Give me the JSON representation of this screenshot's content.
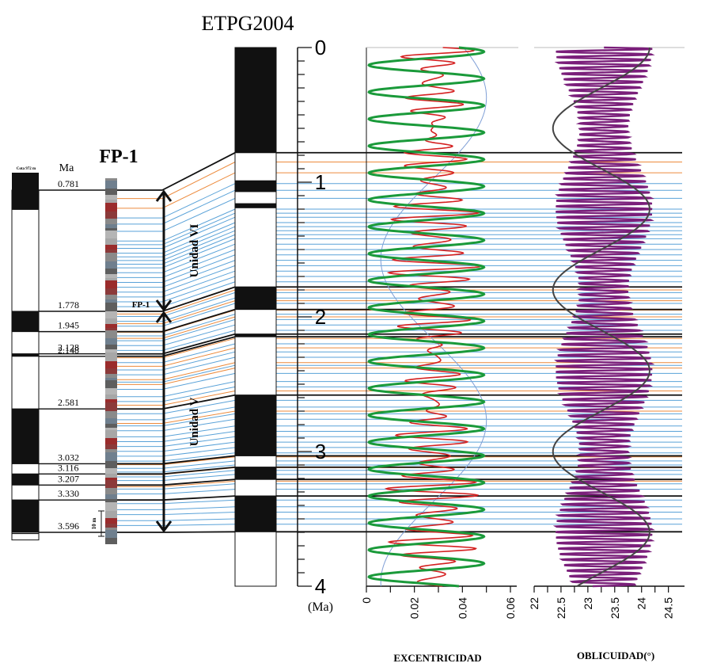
{
  "chart_data": {
    "type": "line",
    "title": "ETPG2004",
    "section_title": "FP-1",
    "fp1_column_label": "Cota 972 m",
    "fp1_age_header": "Ma",
    "fp1_inline_label": "FP-1",
    "scale_bar_label": "10 m",
    "age_axis": {
      "unit_label": "(Ma)",
      "ticks": [
        "0",
        "1",
        "2",
        "3",
        "4"
      ],
      "range": [
        0,
        4
      ]
    },
    "boundary_ages": [
      0.781,
      1.778,
      1.945,
      2.128,
      2.148,
      2.581,
      3.032,
      3.116,
      3.207,
      3.33,
      3.596
    ],
    "boundary_age_labels": [
      "0.781",
      "1.778",
      "1.945",
      "2.128",
      "2.148",
      "2.581",
      "3.032",
      "3.116",
      "3.207",
      "3.330",
      "3.596"
    ],
    "units": [
      {
        "label": "Unidad VI",
        "from": 0.781,
        "to": 1.778
      },
      {
        "label": "Unidad V",
        "from": 1.778,
        "to": 3.596
      }
    ],
    "polarity_etpg2004": [
      {
        "from": 0.0,
        "to": 0.781,
        "polarity": "normal"
      },
      {
        "from": 0.781,
        "to": 0.99,
        "polarity": "reversed"
      },
      {
        "from": 0.99,
        "to": 1.07,
        "polarity": "normal"
      },
      {
        "from": 1.07,
        "to": 1.16,
        "polarity": "reversed"
      },
      {
        "from": 1.16,
        "to": 1.19,
        "polarity": "normal"
      },
      {
        "from": 1.19,
        "to": 1.778,
        "polarity": "reversed"
      },
      {
        "from": 1.778,
        "to": 1.945,
        "polarity": "normal"
      },
      {
        "from": 1.945,
        "to": 2.128,
        "polarity": "reversed"
      },
      {
        "from": 2.128,
        "to": 2.148,
        "polarity": "normal"
      },
      {
        "from": 2.148,
        "to": 2.581,
        "polarity": "reversed"
      },
      {
        "from": 2.581,
        "to": 3.032,
        "polarity": "normal"
      },
      {
        "from": 3.032,
        "to": 3.116,
        "polarity": "reversed"
      },
      {
        "from": 3.116,
        "to": 3.207,
        "polarity": "normal"
      },
      {
        "from": 3.207,
        "to": 3.33,
        "polarity": "reversed"
      },
      {
        "from": 3.33,
        "to": 3.596,
        "polarity": "normal"
      },
      {
        "from": 3.596,
        "to": 4.0,
        "polarity": "reversed"
      }
    ],
    "polarity_fp1": [
      {
        "from": 0.781,
        "to": 0.94,
        "polarity": "normal"
      },
      {
        "from": 0.94,
        "to": 1.778,
        "polarity": "reversed"
      },
      {
        "from": 1.778,
        "to": 1.945,
        "polarity": "normal"
      },
      {
        "from": 1.945,
        "to": 2.128,
        "polarity": "reversed"
      },
      {
        "from": 2.128,
        "to": 2.148,
        "polarity": "normal"
      },
      {
        "from": 2.148,
        "to": 2.581,
        "polarity": "reversed"
      },
      {
        "from": 2.581,
        "to": 3.032,
        "polarity": "normal"
      },
      {
        "from": 3.032,
        "to": 3.116,
        "polarity": "reversed"
      },
      {
        "from": 3.116,
        "to": 3.207,
        "polarity": "normal"
      },
      {
        "from": 3.207,
        "to": 3.33,
        "polarity": "reversed"
      },
      {
        "from": 3.33,
        "to": 3.596,
        "polarity": "normal"
      },
      {
        "from": 3.596,
        "to": 3.65,
        "polarity": "reversed"
      }
    ],
    "correlation_lines_blue": [
      1.01,
      1.06,
      1.12,
      1.2,
      1.23,
      1.26,
      1.3,
      1.33,
      1.36,
      1.39,
      1.42,
      1.46,
      1.5,
      1.54,
      1.58,
      1.62,
      1.66,
      1.7,
      1.74,
      1.82,
      1.86,
      1.9,
      1.98,
      2.02,
      2.06,
      2.1,
      2.2,
      2.26,
      2.3,
      2.36,
      2.42,
      2.48,
      2.52,
      2.62,
      2.67,
      2.72,
      2.76,
      2.81,
      2.85,
      2.89,
      2.93,
      2.97,
      3.01,
      3.07,
      3.1,
      3.14,
      3.17,
      3.24,
      3.28,
      3.36,
      3.41,
      3.45,
      3.5,
      3.54
    ],
    "correlation_lines_orange": [
      0.85,
      0.93,
      1.8,
      1.88,
      1.95,
      2.0,
      2.16,
      2.23,
      2.34,
      2.38,
      2.55,
      2.7,
      3.04,
      3.12,
      3.22
    ],
    "eccentricity": {
      "label": "EXCENTRICIDAD",
      "ticks": [
        "0",
        "0.02",
        "0.04",
        "0.06"
      ],
      "range": [
        0,
        0.06
      ],
      "series": [
        {
          "color": "#d42020",
          "period_ma": 0.1,
          "mean": 0.028,
          "amplitude": 0.016,
          "modulation": 0.4
        },
        {
          "color": "#1a9a3a",
          "period_ma": 0.2,
          "mean": 0.025,
          "amplitude": 0.024
        },
        {
          "color": "#7f9fd6",
          "period_ma": 2.4,
          "mean": 0.028,
          "amplitude": 0.022
        }
      ]
    },
    "obliquity": {
      "label": "OBLICUIDAD(°)",
      "ticks": [
        "22",
        "22.5",
        "23",
        "23.5",
        "24",
        "24.5"
      ],
      "range": [
        22,
        24.8
      ],
      "series": [
        {
          "color": "#7a1f7a",
          "period_ma": 0.041,
          "mean": 23.3,
          "amplitude": 0.9
        },
        {
          "color": "#444444",
          "period_ma": 1.2,
          "mean": 23.25,
          "amplitude": 0.9
        }
      ]
    }
  }
}
